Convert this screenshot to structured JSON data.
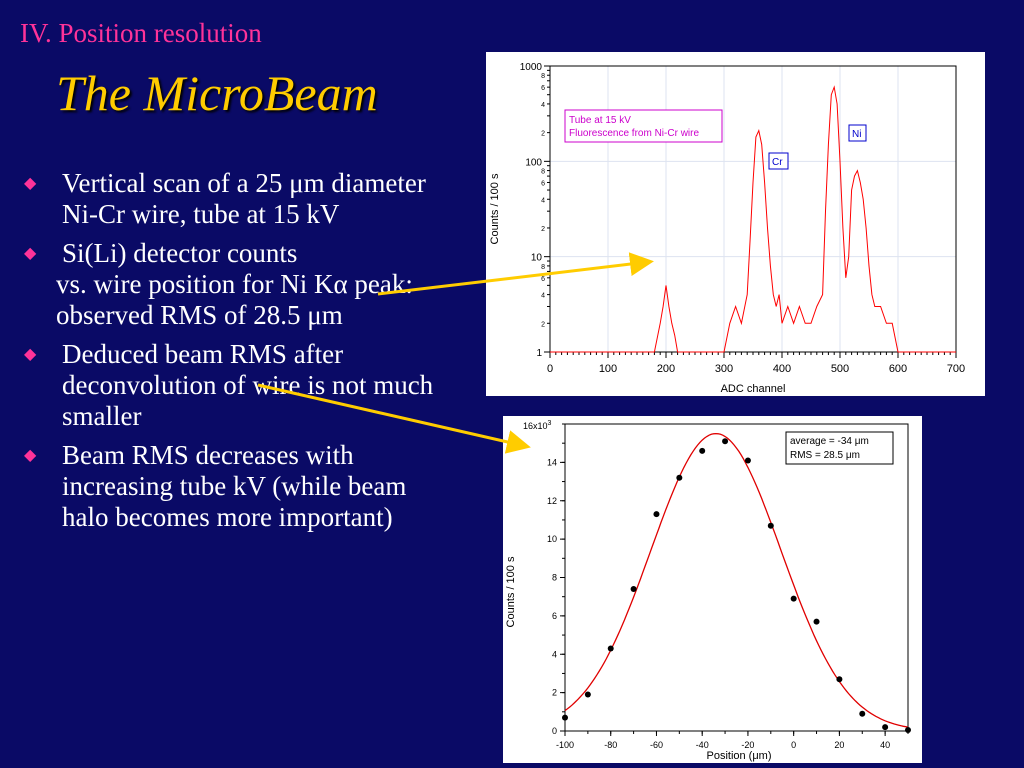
{
  "slide": {
    "section": "IV. Position resolution",
    "title": "The MicroBeam",
    "bullets": [
      {
        "text": "Vertical scan of a 25 μm diameter Ni-Cr wire, tube at 15 kV"
      },
      {
        "text": "Si(Li) detector counts",
        "continuation": "vs. wire position for Ni Kα peak: observed RMS of 28.5 μm"
      },
      {
        "text": "Deduced beam RMS after deconvolution of wire is not much smaller"
      },
      {
        "text": "Beam RMS decreases with increasing tube kV (while beam halo becomes more important)"
      }
    ],
    "colors": {
      "background": "#0a0a66",
      "title": "#ffcc00",
      "section": "#ff3399",
      "bullet_marker": "#ff3399",
      "arrow": "#ffcc00"
    }
  },
  "chart_data": [
    {
      "type": "line",
      "xlabel": "ADC channel",
      "ylabel": "Counts / 100 s",
      "xlim": [
        0,
        700
      ],
      "ylim": [
        1,
        1000
      ],
      "yscale": "log",
      "x_ticks": [
        0,
        100,
        200,
        300,
        400,
        500,
        600,
        700
      ],
      "y_ticks": [
        1,
        10,
        100,
        1000
      ],
      "y_ticks_minor_labels": [
        "2",
        "4",
        "6",
        "8"
      ],
      "line_color": "#ff0000",
      "series": [
        {
          "x": [
            0,
            180,
            190,
            195,
            200,
            205,
            210,
            215,
            220,
            300,
            310,
            320,
            330,
            340,
            345,
            350,
            355,
            360,
            365,
            370,
            375,
            380,
            385,
            390,
            395,
            400,
            410,
            420,
            430,
            440,
            450,
            460,
            470,
            475,
            480,
            485,
            490,
            495,
            500,
            505,
            510,
            515,
            520,
            525,
            530,
            535,
            540,
            545,
            550,
            555,
            560,
            570,
            580,
            590,
            600,
            620,
            700
          ],
          "y": [
            1,
            1,
            2,
            3,
            5,
            3,
            2,
            1.5,
            1,
            1,
            2,
            3,
            2,
            4,
            15,
            60,
            180,
            210,
            150,
            60,
            20,
            8,
            4,
            3,
            4,
            2,
            3,
            2,
            3,
            2,
            2,
            3,
            4,
            30,
            150,
            500,
            600,
            400,
            100,
            20,
            6,
            10,
            50,
            70,
            80,
            60,
            40,
            20,
            8,
            4,
            3,
            3,
            2,
            2,
            1,
            1,
            1
          ]
        }
      ],
      "annotations": [
        {
          "text": "Tube at 15 kV",
          "color": "#cc00cc"
        },
        {
          "text": "Fluorescence from Ni-Cr wire",
          "color": "#cc00cc"
        },
        {
          "text": "Cr",
          "color": "#0000cc"
        },
        {
          "text": "Ni",
          "color": "#0000cc"
        }
      ]
    },
    {
      "type": "scatter",
      "xlabel": "Position (μm)",
      "ylabel": "Counts / 100 s",
      "xlim": [
        -100,
        50
      ],
      "ylim": [
        0,
        16000
      ],
      "x_ticks": [
        -100,
        -80,
        -60,
        -40,
        -20,
        0,
        20,
        40
      ],
      "y_ticks": [
        0,
        2,
        4,
        6,
        8,
        10,
        12,
        14
      ],
      "y_multiplier_label": "16x10",
      "y_multiplier_exp": "3",
      "points": {
        "x": [
          -100,
          -90,
          -80,
          -70,
          -60,
          -50,
          -40,
          -30,
          -20,
          -10,
          0,
          10,
          20,
          30,
          40,
          50
        ],
        "y": [
          700,
          1900,
          4300,
          7400,
          11300,
          13200,
          14600,
          15100,
          14100,
          10700,
          6900,
          5700,
          2700,
          900,
          200,
          50
        ]
      },
      "fit": {
        "type": "gaussian",
        "mean": -34,
        "sigma": 28.5,
        "amplitude": 15500,
        "color": "#e00000"
      },
      "legend": {
        "line1": "average = -34 μm",
        "line2": "RMS = 28.5 μm",
        "placement": "top-right"
      }
    }
  ]
}
